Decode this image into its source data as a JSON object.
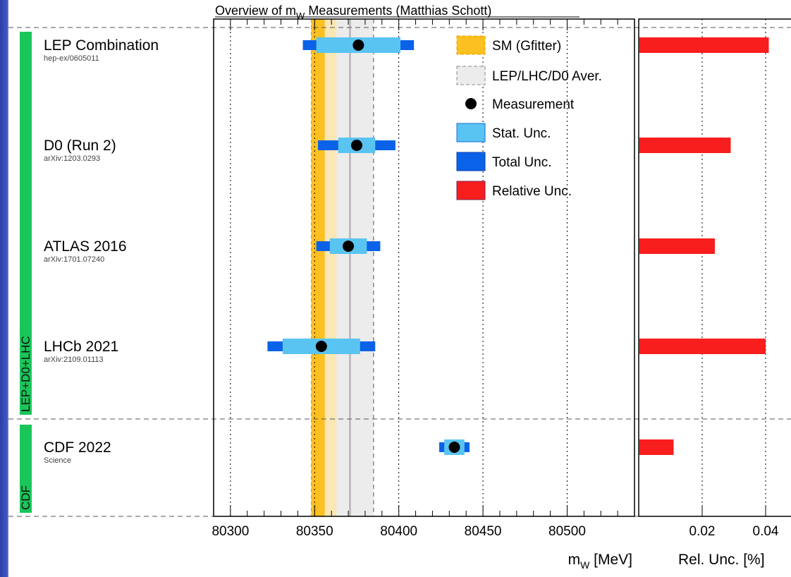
{
  "chart_data": {
    "type": "errorbar",
    "title_pre": "Overview of m",
    "title_sub": "W",
    "title_post": " Measurements (Matthias Schott)",
    "x_axis": {
      "label_main": "m",
      "label_sub": "W",
      "label_unit": " [MeV]",
      "range": [
        80290,
        80540
      ],
      "ticks": [
        80300,
        80350,
        80400,
        80450,
        80500
      ],
      "minor_step": 10
    },
    "rel_axis": {
      "label": "Rel. Unc. [%]",
      "range": [
        0,
        0.048
      ],
      "ticks": [
        0.02,
        0.04
      ],
      "tick_labels": [
        "0.02",
        "0.04"
      ]
    },
    "sm_band": {
      "name": "SM (Gfitter)",
      "low": 80348,
      "high": 80356,
      "color": "#fcc020"
    },
    "average_band": {
      "name": "LEP/LHC/D0 Aver.",
      "low": 80356,
      "high": 80385,
      "center": 80371
    },
    "groups": [
      {
        "label": "LEP+D0+LHC",
        "first": 0,
        "last": 3
      },
      {
        "label": "CDF",
        "first": 4,
        "last": 4
      }
    ],
    "measurements": [
      {
        "name": "LEP Combination",
        "ref": "hep-ex/0605011",
        "value": 80376,
        "stat": 25,
        "total": 33,
        "rel": 0.041
      },
      {
        "name": "D0 (Run 2)",
        "ref": "arXiv:1203.0293",
        "value": 80375,
        "stat": 11,
        "total": 23,
        "rel": 0.029
      },
      {
        "name": "ATLAS 2016",
        "ref": "arXiv:1701.07240",
        "value": 80370,
        "stat": 11,
        "total": 19,
        "rel": 0.024
      },
      {
        "name": "LHCb 2021",
        "ref": "arXiv:2109.01113",
        "value": 80354,
        "stat": 23,
        "total": 32,
        "rel": 0.04
      },
      {
        "name": "CDF 2022",
        "ref": "Science",
        "value": 80433,
        "stat": 6,
        "total": 9,
        "rel": 0.011
      }
    ],
    "legend": [
      {
        "key": "sm",
        "label": "SM (Gfitter)"
      },
      {
        "key": "avg",
        "label": "LEP/LHC/D0 Aver."
      },
      {
        "key": "meas",
        "label": "Measurement"
      },
      {
        "key": "stat",
        "label": "Stat. Unc."
      },
      {
        "key": "total",
        "label": "Total Unc."
      },
      {
        "key": "rel",
        "label": "Relative Unc."
      }
    ],
    "colors": {
      "sm_fill": "#fcc020",
      "sm_light": "#fbe7b4",
      "avg_fill": "#ececec",
      "stat": "#59c4f2",
      "total": "#0a62e8",
      "relative": "#f81e1e",
      "group_bar": "#1ac65a",
      "marker": "#000000"
    }
  }
}
